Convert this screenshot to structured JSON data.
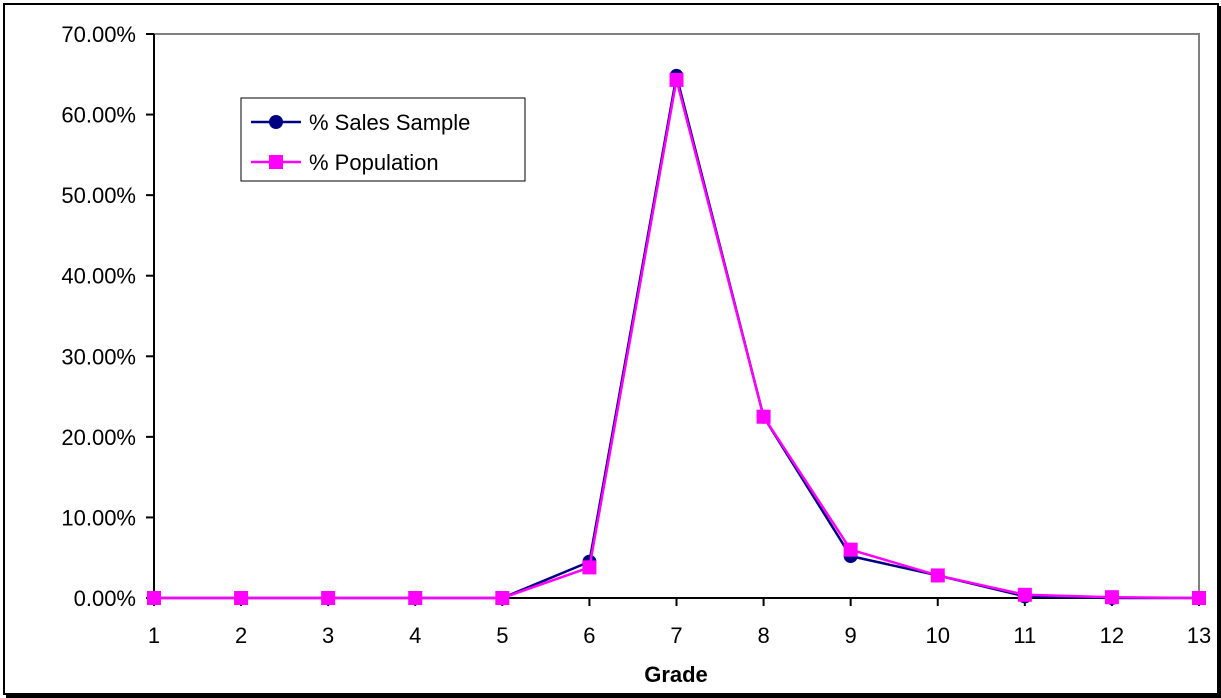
{
  "chart_data": {
    "type": "line",
    "title": "",
    "xlabel": "Grade",
    "ylabel": "",
    "x": [
      1,
      2,
      3,
      4,
      5,
      6,
      7,
      8,
      9,
      10,
      11,
      12,
      13
    ],
    "ylim": [
      0,
      0.7
    ],
    "yticks": [
      0,
      0.1,
      0.2,
      0.3,
      0.4,
      0.5,
      0.6,
      0.7
    ],
    "ytick_labels": [
      "0.00%",
      "10.00%",
      "20.00%",
      "30.00%",
      "40.00%",
      "50.00%",
      "60.00%",
      "70.00%"
    ],
    "grid": false,
    "legend_position": "top-left",
    "series": [
      {
        "name": "% Sales Sample",
        "color": "#000080",
        "marker": "circle",
        "values": [
          0,
          0,
          0,
          0,
          0,
          0.045,
          0.648,
          0.225,
          0.052,
          0.028,
          0.002,
          0,
          0
        ]
      },
      {
        "name": "% Population",
        "color": "#ff00ff",
        "marker": "square",
        "values": [
          0,
          0,
          0,
          0,
          0,
          0.038,
          0.643,
          0.225,
          0.06,
          0.028,
          0.004,
          0.001,
          0
        ]
      }
    ]
  }
}
